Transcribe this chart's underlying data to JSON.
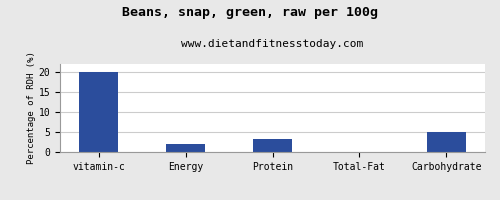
{
  "title": "Beans, snap, green, raw per 100g",
  "subtitle": "www.dietandfitnesstoday.com",
  "categories": [
    "vitamin-c",
    "Energy",
    "Protein",
    "Total-Fat",
    "Carbohydrate"
  ],
  "values": [
    20,
    2,
    3.2,
    0,
    5
  ],
  "bar_color": "#2b4d9c",
  "ylabel": "Percentage of RDH (%)",
  "ylim": [
    0,
    22
  ],
  "yticks": [
    0,
    5,
    10,
    15,
    20
  ],
  "background_color": "#e8e8e8",
  "plot_bg_color": "#ffffff",
  "title_fontsize": 9.5,
  "subtitle_fontsize": 8,
  "tick_fontsize": 7,
  "ylabel_fontsize": 6.5,
  "bar_width": 0.45,
  "grid_color": "#cccccc",
  "border_color": "#999999"
}
